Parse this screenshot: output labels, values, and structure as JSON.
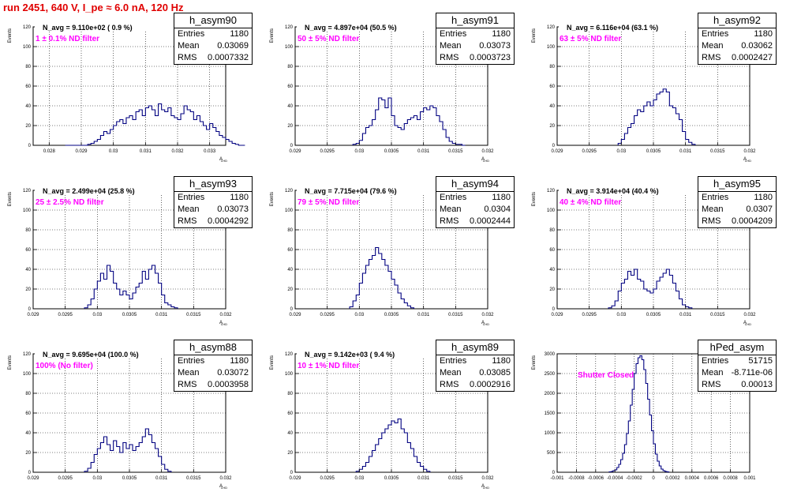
{
  "title": "run 2451,   640 V, I_pe ≈ 6.0 nA, 120 Hz",
  "chart_data": [
    {
      "type": "bar",
      "name": "h_asym90",
      "stats": {
        "Entries": "1180",
        "Mean": "0.03069",
        "RMS": "0.0007332"
      },
      "navg": "N_avg = 9.110e+02 ( 0.9 %)",
      "filter": "1 ± 0.1% ND filter",
      "xlim": [
        0.0275,
        0.0335
      ],
      "ylim": [
        0,
        120
      ],
      "xticks": [
        "0.028",
        "0.029",
        "0.03",
        "0.031",
        "0.032",
        "0.033"
      ],
      "xtickvals": [
        0.028,
        0.029,
        0.03,
        0.031,
        0.032,
        0.033
      ],
      "yticks": [
        "0",
        "20",
        "40",
        "60",
        "80",
        "100",
        "120"
      ],
      "ylabel": "Events",
      "xlabel": "A",
      "bins_start": 0.0285,
      "bin_width": 0.0001,
      "values": [
        0,
        0,
        0,
        0,
        0,
        0,
        0,
        1,
        2,
        4,
        6,
        10,
        14,
        12,
        16,
        20,
        24,
        26,
        22,
        28,
        30,
        26,
        34,
        36,
        30,
        38,
        40,
        36,
        30,
        42,
        36,
        34,
        38,
        30,
        28,
        26,
        32,
        40,
        36,
        34,
        26,
        30,
        24,
        20,
        16,
        22,
        18,
        14,
        10,
        8,
        6,
        4,
        2,
        1,
        0,
        0
      ]
    },
    {
      "type": "bar",
      "name": "h_asym91",
      "stats": {
        "Entries": "1180",
        "Mean": "0.03073",
        "RMS": "0.0003723"
      },
      "navg": "N_avg = 4.897e+04 (50.5 %)",
      "filter": "50 ± 5% ND filter",
      "xlim": [
        0.029,
        0.032
      ],
      "ylim": [
        0,
        120
      ],
      "xticks": [
        "0.029",
        "0.0295",
        "0.03",
        "0.0305",
        "0.031",
        "0.0315",
        "0.032"
      ],
      "xtickvals": [
        0.029,
        0.0295,
        0.03,
        0.0305,
        0.031,
        0.0315,
        0.032
      ],
      "yticks": [
        "0",
        "20",
        "40",
        "60",
        "80",
        "100",
        "120"
      ],
      "ylabel": "Events",
      "xlabel": "A",
      "bins_start": 0.0299,
      "bin_width": 5e-05,
      "values": [
        1,
        2,
        5,
        12,
        18,
        20,
        26,
        36,
        48,
        46,
        38,
        48,
        30,
        20,
        18,
        16,
        22,
        26,
        28,
        30,
        26,
        34,
        38,
        36,
        40,
        38,
        30,
        24,
        16,
        8,
        4,
        2,
        1,
        1,
        0
      ]
    },
    {
      "type": "bar",
      "name": "h_asym92",
      "stats": {
        "Entries": "1180",
        "Mean": "0.03062",
        "RMS": "0.0002427"
      },
      "navg": "N_avg = 6.116e+04 (63.1 %)",
      "filter": "63 ± 5% ND filter",
      "xlim": [
        0.029,
        0.032
      ],
      "ylim": [
        0,
        120
      ],
      "xticks": [
        "0.029",
        "0.0295",
        "0.03",
        "0.0305",
        "0.031",
        "0.0315",
        "0.032"
      ],
      "xtickvals": [
        0.029,
        0.0295,
        0.03,
        0.0305,
        0.031,
        0.0315,
        0.032
      ],
      "yticks": [
        "0",
        "20",
        "40",
        "60",
        "80",
        "100",
        "120"
      ],
      "ylabel": "Events",
      "xlabel": "A",
      "bins_start": 0.02995,
      "bin_width": 5e-05,
      "values": [
        2,
        6,
        12,
        18,
        22,
        30,
        36,
        34,
        40,
        44,
        40,
        46,
        52,
        54,
        57,
        54,
        40,
        38,
        32,
        26,
        14,
        6,
        3,
        1
      ]
    },
    {
      "type": "bar",
      "name": "h_asym93",
      "stats": {
        "Entries": "1180",
        "Mean": "0.03073",
        "RMS": "0.0004292"
      },
      "navg": "N_avg = 2.499e+04 (25.8 %)",
      "filter": "25 ± 2.5% ND filter",
      "xlim": [
        0.029,
        0.032
      ],
      "ylim": [
        0,
        120
      ],
      "xticks": [
        "0.029",
        "0.0295",
        "0.03",
        "0.0305",
        "0.031",
        "0.0315",
        "0.032"
      ],
      "xtickvals": [
        0.029,
        0.0295,
        0.03,
        0.0305,
        0.031,
        0.0315,
        0.032
      ],
      "yticks": [
        "0",
        "20",
        "40",
        "60",
        "80",
        "100",
        "120"
      ],
      "ylabel": "Events",
      "xlabel": "A",
      "bins_start": 0.0298,
      "bin_width": 5e-05,
      "values": [
        1,
        4,
        10,
        20,
        28,
        36,
        30,
        44,
        38,
        26,
        20,
        14,
        18,
        14,
        10,
        16,
        22,
        26,
        38,
        30,
        40,
        44,
        36,
        26,
        14,
        6,
        4,
        2,
        1
      ]
    },
    {
      "type": "bar",
      "name": "h_asym94",
      "stats": {
        "Entries": "1180",
        "Mean": "0.0304",
        "RMS": "0.0002444"
      },
      "navg": "N_avg = 7.715e+04 (79.6 %)",
      "filter": "79 ± 5% ND filter",
      "xlim": [
        0.029,
        0.032
      ],
      "ylim": [
        0,
        120
      ],
      "xticks": [
        "0.029",
        "0.0295",
        "0.03",
        "0.0305",
        "0.031",
        "0.0315",
        "0.032"
      ],
      "xtickvals": [
        0.029,
        0.0295,
        0.03,
        0.0305,
        0.031,
        0.0315,
        0.032
      ],
      "yticks": [
        "0",
        "20",
        "40",
        "60",
        "80",
        "100",
        "120"
      ],
      "ylabel": "Events",
      "xlabel": "A",
      "bins_start": 0.02985,
      "bin_width": 5e-05,
      "values": [
        2,
        8,
        14,
        26,
        36,
        44,
        50,
        54,
        62,
        56,
        50,
        44,
        38,
        30,
        24,
        16,
        10,
        6,
        3,
        1
      ]
    },
    {
      "type": "bar",
      "name": "h_asym95",
      "stats": {
        "Entries": "1180",
        "Mean": "0.0307",
        "RMS": "0.0004209"
      },
      "navg": "N_avg = 3.914e+04 (40.4 %)",
      "filter": "40 ± 4% ND filter",
      "xlim": [
        0.029,
        0.032
      ],
      "ylim": [
        0,
        120
      ],
      "xticks": [
        "0.029",
        "0.0295",
        "0.03",
        "0.0305",
        "0.031",
        "0.0315",
        "0.032"
      ],
      "xtickvals": [
        0.029,
        0.0295,
        0.03,
        0.0305,
        0.031,
        0.0315,
        0.032
      ],
      "yticks": [
        "0",
        "20",
        "40",
        "60",
        "80",
        "100",
        "120"
      ],
      "ylabel": "Events",
      "xlabel": "A",
      "bins_start": 0.0298,
      "bin_width": 5e-05,
      "values": [
        1,
        3,
        8,
        18,
        26,
        30,
        38,
        34,
        40,
        30,
        28,
        20,
        18,
        16,
        20,
        28,
        32,
        36,
        40,
        34,
        26,
        18,
        10,
        4,
        2,
        1
      ]
    },
    {
      "type": "bar",
      "name": "h_asym88",
      "stats": {
        "Entries": "1180",
        "Mean": "0.03072",
        "RMS": "0.0003958"
      },
      "navg": "N_avg = 9.695e+04 (100.0 %)",
      "filter": "100% (No filter)",
      "xlim": [
        0.029,
        0.032
      ],
      "ylim": [
        0,
        120
      ],
      "xticks": [
        "0.029",
        "0.0295",
        "0.03",
        "0.0305",
        "0.031",
        "0.0315",
        "0.032"
      ],
      "xtickvals": [
        0.029,
        0.0295,
        0.03,
        0.0305,
        0.031,
        0.0315,
        0.032
      ],
      "yticks": [
        "0",
        "20",
        "40",
        "60",
        "80",
        "100",
        "120"
      ],
      "ylabel": "Events",
      "xlabel": "A",
      "bins_start": 0.0298,
      "bin_width": 5e-05,
      "values": [
        1,
        4,
        10,
        18,
        24,
        30,
        36,
        28,
        22,
        32,
        26,
        20,
        30,
        24,
        28,
        22,
        26,
        30,
        36,
        44,
        38,
        30,
        24,
        16,
        8,
        3,
        1
      ]
    },
    {
      "type": "bar",
      "name": "h_asym89",
      "stats": {
        "Entries": "1180",
        "Mean": "0.03085",
        "RMS": "0.0002916"
      },
      "navg": "N_avg = 9.142e+03 ( 9.4 %)",
      "filter": "10 ± 1% ND filter",
      "xlim": [
        0.029,
        0.032
      ],
      "ylim": [
        0,
        120
      ],
      "xticks": [
        "0.029",
        "0.0295",
        "0.03",
        "0.0305",
        "0.031",
        "0.0315",
        "0.032"
      ],
      "xtickvals": [
        0.029,
        0.0295,
        0.03,
        0.0305,
        0.031,
        0.0315,
        0.032
      ],
      "yticks": [
        "0",
        "20",
        "40",
        "60",
        "80",
        "100",
        "120"
      ],
      "ylabel": "Events",
      "xlabel": "A",
      "bins_start": 0.02995,
      "bin_width": 5e-05,
      "values": [
        1,
        3,
        6,
        10,
        16,
        22,
        28,
        34,
        40,
        44,
        48,
        52,
        50,
        54,
        44,
        40,
        30,
        24,
        16,
        10,
        6,
        3,
        1
      ]
    },
    {
      "type": "bar",
      "name": "hPed_asym",
      "stats": {
        "Entries": "51715",
        "Mean": "-8.711e-06",
        "RMS": "0.00013"
      },
      "navg": "",
      "filter": "Shutter Closed",
      "xlim": [
        -0.001,
        0.001
      ],
      "ylim": [
        0,
        3000
      ],
      "xticks": [
        "-0.001",
        "-0.0008",
        "-0.0006",
        "-0.0004",
        "-0.0002",
        "0",
        "0.0002",
        "0.0004",
        "0.0006",
        "0.0008",
        "0.001"
      ],
      "xtickvals": [
        -0.001,
        -0.0008,
        -0.0006,
        -0.0004,
        -0.0002,
        0,
        0.0002,
        0.0004,
        0.0006,
        0.0008,
        0.001
      ],
      "yticks": [
        "0",
        "500",
        "1000",
        "1500",
        "2000",
        "2500",
        "3000"
      ],
      "ylabel": "Events",
      "xlabel": "",
      "bins_start": -0.00046,
      "bin_width": 2e-05,
      "values": [
        10,
        20,
        40,
        60,
        120,
        200,
        320,
        480,
        700,
        980,
        1300,
        1700,
        2100,
        2500,
        2750,
        2900,
        2950,
        2850,
        2600,
        2250,
        1850,
        1450,
        1050,
        720,
        460,
        280,
        160,
        80,
        40,
        20,
        10
      ]
    }
  ]
}
